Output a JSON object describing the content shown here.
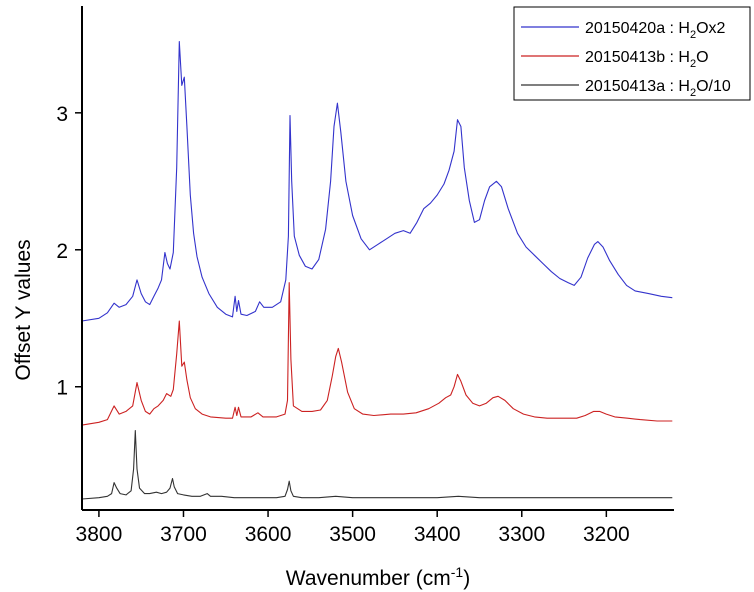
{
  "chart_data": {
    "type": "line",
    "title": "",
    "xlabel_main": "Wavenumber (cm",
    "xlabel_sup": "-1",
    "xlabel_end": ")",
    "ylabel": "Offset Y values",
    "xlim": [
      3820,
      3120
    ],
    "ylim": [
      0.1,
      3.78
    ],
    "x_ticks": [
      3800,
      3700,
      3600,
      3500,
      3400,
      3300,
      3200
    ],
    "x_tick_labels": [
      "3800",
      "3700",
      "3600",
      "3500",
      "3400",
      "3300",
      "3200"
    ],
    "y_ticks": [
      1,
      2,
      3
    ],
    "y_tick_labels": [
      "1",
      "2",
      "3"
    ],
    "legend_position": "top-right",
    "series": [
      {
        "name": "20150420a : H2Ox2",
        "legend": {
          "pre": "20150420a : H",
          "sub": "2",
          "post": "Ox2"
        },
        "color": "#3333cc",
        "points": [
          [
            3820,
            1.48
          ],
          [
            3800,
            1.5
          ],
          [
            3790,
            1.54
          ],
          [
            3782,
            1.61
          ],
          [
            3776,
            1.58
          ],
          [
            3768,
            1.6
          ],
          [
            3760,
            1.66
          ],
          [
            3755,
            1.78
          ],
          [
            3750,
            1.68
          ],
          [
            3745,
            1.62
          ],
          [
            3740,
            1.6
          ],
          [
            3735,
            1.66
          ],
          [
            3730,
            1.72
          ],
          [
            3726,
            1.78
          ],
          [
            3722,
            1.98
          ],
          [
            3719,
            1.9
          ],
          [
            3716,
            1.86
          ],
          [
            3712,
            1.98
          ],
          [
            3708,
            2.6
          ],
          [
            3705,
            3.52
          ],
          [
            3702,
            3.2
          ],
          [
            3699,
            3.26
          ],
          [
            3696,
            2.9
          ],
          [
            3692,
            2.4
          ],
          [
            3688,
            2.12
          ],
          [
            3684,
            1.95
          ],
          [
            3678,
            1.8
          ],
          [
            3670,
            1.68
          ],
          [
            3660,
            1.58
          ],
          [
            3650,
            1.53
          ],
          [
            3642,
            1.51
          ],
          [
            3639,
            1.66
          ],
          [
            3637,
            1.55
          ],
          [
            3635,
            1.63
          ],
          [
            3632,
            1.53
          ],
          [
            3625,
            1.52
          ],
          [
            3615,
            1.55
          ],
          [
            3610,
            1.62
          ],
          [
            3605,
            1.58
          ],
          [
            3595,
            1.58
          ],
          [
            3585,
            1.62
          ],
          [
            3579,
            1.78
          ],
          [
            3576,
            2.1
          ],
          [
            3574,
            2.98
          ],
          [
            3572,
            2.5
          ],
          [
            3569,
            2.1
          ],
          [
            3563,
            1.96
          ],
          [
            3556,
            1.88
          ],
          [
            3548,
            1.86
          ],
          [
            3540,
            1.93
          ],
          [
            3532,
            2.15
          ],
          [
            3526,
            2.5
          ],
          [
            3522,
            2.9
          ],
          [
            3518,
            3.07
          ],
          [
            3514,
            2.86
          ],
          [
            3508,
            2.5
          ],
          [
            3500,
            2.25
          ],
          [
            3490,
            2.08
          ],
          [
            3480,
            2.0
          ],
          [
            3470,
            2.04
          ],
          [
            3460,
            2.08
          ],
          [
            3450,
            2.12
          ],
          [
            3440,
            2.14
          ],
          [
            3432,
            2.12
          ],
          [
            3424,
            2.2
          ],
          [
            3416,
            2.3
          ],
          [
            3408,
            2.34
          ],
          [
            3400,
            2.4
          ],
          [
            3392,
            2.48
          ],
          [
            3386,
            2.58
          ],
          [
            3380,
            2.72
          ],
          [
            3376,
            2.95
          ],
          [
            3372,
            2.9
          ],
          [
            3368,
            2.6
          ],
          [
            3362,
            2.36
          ],
          [
            3356,
            2.2
          ],
          [
            3350,
            2.22
          ],
          [
            3344,
            2.36
          ],
          [
            3338,
            2.46
          ],
          [
            3330,
            2.5
          ],
          [
            3324,
            2.46
          ],
          [
            3316,
            2.3
          ],
          [
            3305,
            2.12
          ],
          [
            3295,
            2.02
          ],
          [
            3285,
            1.96
          ],
          [
            3275,
            1.9
          ],
          [
            3265,
            1.84
          ],
          [
            3255,
            1.79
          ],
          [
            3245,
            1.76
          ],
          [
            3238,
            1.74
          ],
          [
            3230,
            1.8
          ],
          [
            3222,
            1.94
          ],
          [
            3214,
            2.04
          ],
          [
            3210,
            2.06
          ],
          [
            3204,
            2.02
          ],
          [
            3196,
            1.92
          ],
          [
            3186,
            1.82
          ],
          [
            3176,
            1.74
          ],
          [
            3166,
            1.7
          ],
          [
            3150,
            1.68
          ],
          [
            3135,
            1.66
          ],
          [
            3122,
            1.65
          ]
        ]
      },
      {
        "name": "20150413b : H2O",
        "legend": {
          "pre": "20150413b : H",
          "sub": "2",
          "post": "O"
        },
        "color": "#cc2222",
        "points": [
          [
            3820,
            0.72
          ],
          [
            3800,
            0.74
          ],
          [
            3790,
            0.76
          ],
          [
            3782,
            0.86
          ],
          [
            3776,
            0.8
          ],
          [
            3768,
            0.82
          ],
          [
            3760,
            0.86
          ],
          [
            3755,
            1.03
          ],
          [
            3750,
            0.9
          ],
          [
            3745,
            0.82
          ],
          [
            3740,
            0.8
          ],
          [
            3735,
            0.84
          ],
          [
            3730,
            0.86
          ],
          [
            3724,
            0.9
          ],
          [
            3720,
            0.95
          ],
          [
            3715,
            0.93
          ],
          [
            3712,
            0.98
          ],
          [
            3708,
            1.24
          ],
          [
            3705,
            1.48
          ],
          [
            3702,
            1.15
          ],
          [
            3699,
            1.18
          ],
          [
            3696,
            1.05
          ],
          [
            3692,
            0.92
          ],
          [
            3686,
            0.84
          ],
          [
            3678,
            0.8
          ],
          [
            3668,
            0.78
          ],
          [
            3650,
            0.77
          ],
          [
            3642,
            0.77
          ],
          [
            3639,
            0.85
          ],
          [
            3637,
            0.79
          ],
          [
            3635,
            0.85
          ],
          [
            3632,
            0.78
          ],
          [
            3620,
            0.78
          ],
          [
            3612,
            0.81
          ],
          [
            3606,
            0.78
          ],
          [
            3590,
            0.78
          ],
          [
            3580,
            0.8
          ],
          [
            3577,
            0.9
          ],
          [
            3575,
            1.76
          ],
          [
            3573,
            1.2
          ],
          [
            3570,
            0.86
          ],
          [
            3560,
            0.82
          ],
          [
            3548,
            0.82
          ],
          [
            3538,
            0.83
          ],
          [
            3530,
            0.9
          ],
          [
            3524,
            1.08
          ],
          [
            3520,
            1.22
          ],
          [
            3517,
            1.28
          ],
          [
            3513,
            1.18
          ],
          [
            3506,
            0.96
          ],
          [
            3498,
            0.84
          ],
          [
            3488,
            0.8
          ],
          [
            3475,
            0.79
          ],
          [
            3455,
            0.8
          ],
          [
            3440,
            0.8
          ],
          [
            3425,
            0.81
          ],
          [
            3410,
            0.84
          ],
          [
            3398,
            0.88
          ],
          [
            3390,
            0.92
          ],
          [
            3384,
            0.94
          ],
          [
            3380,
            1.0
          ],
          [
            3376,
            1.09
          ],
          [
            3372,
            1.04
          ],
          [
            3366,
            0.94
          ],
          [
            3358,
            0.88
          ],
          [
            3350,
            0.86
          ],
          [
            3342,
            0.88
          ],
          [
            3334,
            0.92
          ],
          [
            3328,
            0.93
          ],
          [
            3320,
            0.9
          ],
          [
            3310,
            0.84
          ],
          [
            3298,
            0.8
          ],
          [
            3285,
            0.78
          ],
          [
            3270,
            0.77
          ],
          [
            3250,
            0.77
          ],
          [
            3235,
            0.77
          ],
          [
            3225,
            0.79
          ],
          [
            3215,
            0.82
          ],
          [
            3208,
            0.82
          ],
          [
            3200,
            0.8
          ],
          [
            3190,
            0.78
          ],
          [
            3175,
            0.77
          ],
          [
            3160,
            0.76
          ],
          [
            3140,
            0.75
          ],
          [
            3122,
            0.75
          ]
        ]
      },
      {
        "name": "20150413a : H2O/10",
        "legend": {
          "pre": "20150413a : H",
          "sub": "2",
          "post": "O/10"
        },
        "color": "#333333",
        "points": [
          [
            3820,
            0.18
          ],
          [
            3800,
            0.19
          ],
          [
            3790,
            0.2
          ],
          [
            3785,
            0.22
          ],
          [
            3782,
            0.3
          ],
          [
            3779,
            0.26
          ],
          [
            3775,
            0.22
          ],
          [
            3768,
            0.21
          ],
          [
            3762,
            0.24
          ],
          [
            3759,
            0.4
          ],
          [
            3757,
            0.68
          ],
          [
            3755,
            0.4
          ],
          [
            3752,
            0.26
          ],
          [
            3746,
            0.22
          ],
          [
            3740,
            0.22
          ],
          [
            3732,
            0.23
          ],
          [
            3726,
            0.22
          ],
          [
            3720,
            0.23
          ],
          [
            3716,
            0.26
          ],
          [
            3713,
            0.33
          ],
          [
            3711,
            0.27
          ],
          [
            3707,
            0.22
          ],
          [
            3700,
            0.21
          ],
          [
            3690,
            0.2
          ],
          [
            3680,
            0.2
          ],
          [
            3672,
            0.22
          ],
          [
            3668,
            0.2
          ],
          [
            3655,
            0.2
          ],
          [
            3640,
            0.19
          ],
          [
            3620,
            0.19
          ],
          [
            3590,
            0.19
          ],
          [
            3580,
            0.2
          ],
          [
            3577,
            0.25
          ],
          [
            3575,
            0.31
          ],
          [
            3573,
            0.24
          ],
          [
            3570,
            0.2
          ],
          [
            3560,
            0.19
          ],
          [
            3540,
            0.19
          ],
          [
            3520,
            0.2
          ],
          [
            3500,
            0.19
          ],
          [
            3450,
            0.19
          ],
          [
            3400,
            0.19
          ],
          [
            3375,
            0.2
          ],
          [
            3350,
            0.19
          ],
          [
            3300,
            0.19
          ],
          [
            3250,
            0.19
          ],
          [
            3200,
            0.19
          ],
          [
            3150,
            0.19
          ],
          [
            3122,
            0.19
          ]
        ]
      }
    ]
  }
}
